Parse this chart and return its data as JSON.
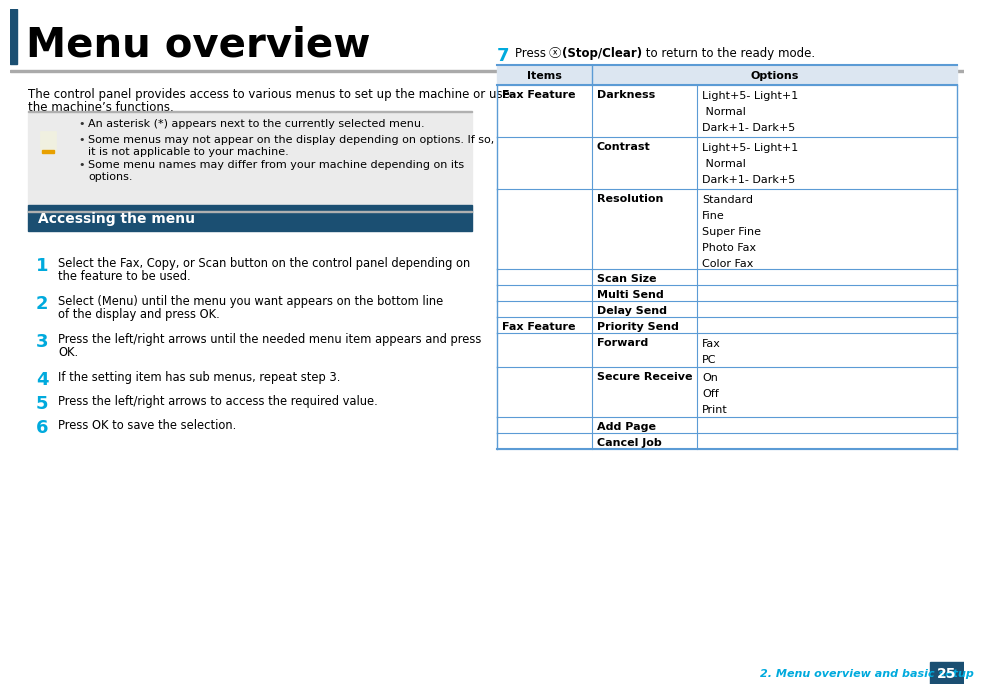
{
  "title": "Menu overview",
  "page_bg": "#ffffff",
  "intro_text_line1": "The control panel provides access to various menus to set up the machine or use",
  "intro_text_line2": "the machine’s functions.",
  "note_bullets": [
    "An asterisk (*) appears next to the currently selected menu.",
    "Some menus may not appear on the display depending on options. If so,\n    it is not applicable to your machine.",
    "Some menu names may differ from your machine depending on its\n    options."
  ],
  "section_header_text": "Accessing the menu",
  "section_header_bg": "#1b4f72",
  "step_color": "#00aadd",
  "steps_1_6": [
    [
      "1",
      "Select the Fax, Copy, or Scan button on the control panel depending on\nthe feature to be used."
    ],
    [
      "2",
      "Select (Menu) until the menu you want appears on the bottom line\nof the display and press OK."
    ],
    [
      "3",
      "Press the left/right arrows until the needed menu item appears and press\nOK."
    ],
    [
      "4",
      "If the setting item has sub menus, repeat step 3."
    ],
    [
      "5",
      "Press the left/right arrows to access the required value."
    ],
    [
      "6",
      "Press OK to save the selection."
    ]
  ],
  "table_header_bg": "#dce6f1",
  "table_line_color": "#5b9bd5",
  "table_rows": [
    {
      "c1": "Fax Feature",
      "c2": "Darkness",
      "c3": [
        "Light+5- Light+1",
        " Normal",
        "Dark+1- Dark+5"
      ],
      "rh": 52
    },
    {
      "c1": "",
      "c2": "Contrast",
      "c3": [
        "Light+5- Light+1",
        " Normal",
        "Dark+1- Dark+5"
      ],
      "rh": 52
    },
    {
      "c1": "",
      "c2": "Resolution",
      "c3": [
        "Standard",
        "Fine",
        "Super Fine",
        "Photo Fax",
        "Color Fax"
      ],
      "rh": 80
    },
    {
      "c1": "",
      "c2": "Scan Size",
      "c3": [],
      "rh": 16
    },
    {
      "c1": "",
      "c2": "Multi Send",
      "c3": [],
      "rh": 16
    },
    {
      "c1": "",
      "c2": "Delay Send",
      "c3": [],
      "rh": 16
    },
    {
      "c1": "Fax Feature",
      "c2": "Priority Send",
      "c3": [],
      "rh": 16
    },
    {
      "c1": "",
      "c2": "Forward",
      "c3": [
        "Fax",
        "PC"
      ],
      "rh": 34
    },
    {
      "c1": "",
      "c2": "Secure Receive",
      "c3": [
        "On",
        "Off",
        "Print"
      ],
      "rh": 50
    },
    {
      "c1": "",
      "c2": "Add Page",
      "c3": [],
      "rh": 16
    },
    {
      "c1": "",
      "c2": "Cancel Job",
      "c3": [],
      "rh": 16
    }
  ],
  "footer_text": "2. Menu overview and basic setup",
  "footer_page": "25",
  "footer_bg": "#1b4f72",
  "footer_text_color": "#00aadd"
}
